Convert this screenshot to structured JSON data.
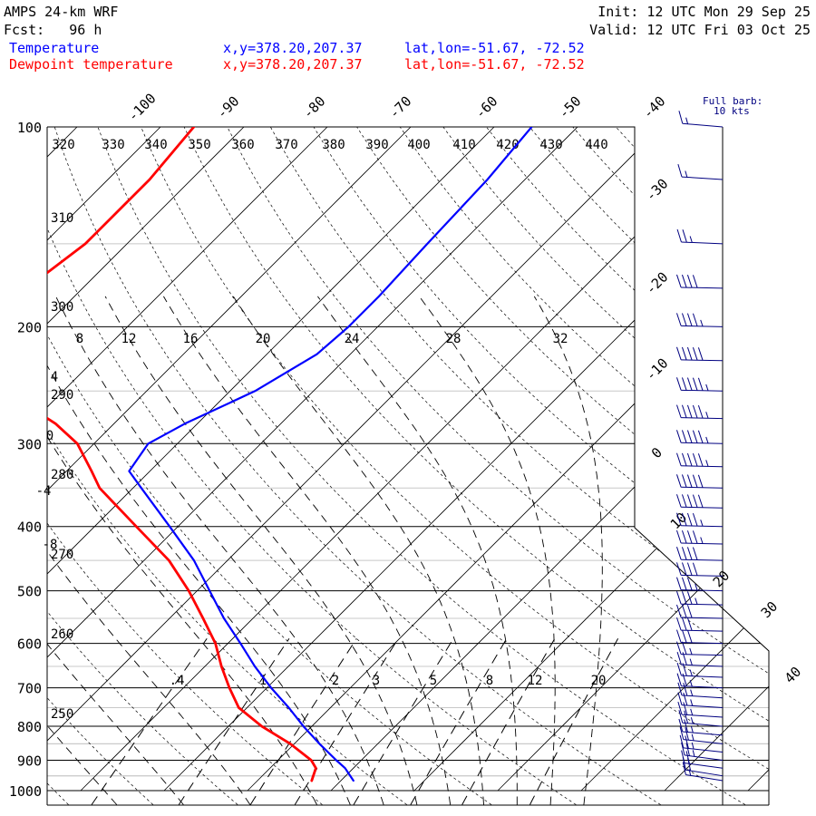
{
  "header": {
    "model": "AMPS 24-km WRF",
    "forecast": "Fcst:   96 h",
    "init": "Init: 12 UTC Mon 29 Sep 25",
    "valid": "Valid: 12 UTC Fri 03 Oct 25"
  },
  "legend": [
    {
      "name": "Temperature",
      "color": "#0000ff",
      "xy": "x,y=378.20,207.37",
      "latlon": "lat,lon=-51.67, -72.52"
    },
    {
      "name": "Dewpoint temperature",
      "color": "#ff0000",
      "xy": "x,y=378.20,207.37",
      "latlon": "lat,lon=-51.67, -72.52"
    }
  ],
  "barb_legend": {
    "line1": "Full barb:",
    "line2": "10 kts"
  },
  "chart_data": {
    "type": "line",
    "diagram": "skew-T log-P",
    "y_axis": {
      "scale": "log",
      "ylim": [
        1000,
        100
      ],
      "ticks": [
        1000,
        900,
        800,
        700,
        600,
        500,
        400,
        300,
        200,
        100
      ]
    },
    "isotherm_labels": [
      -100,
      -90,
      -80,
      -70,
      -60,
      -50,
      -40,
      -30,
      -20,
      -10,
      0,
      10,
      20,
      30,
      40
    ],
    "theta_labels_top": [
      320,
      330,
      340,
      350,
      360,
      370,
      380,
      390,
      400,
      410,
      420,
      430,
      440
    ],
    "theta_labels_left": [
      310,
      300,
      290,
      280,
      270,
      260,
      250
    ],
    "theta_e_labels": [
      8,
      12,
      16,
      20,
      24,
      28,
      32,
      4,
      0,
      -4,
      -8
    ],
    "mixing_ratio_labels": [
      ".4",
      "1",
      "2",
      "3",
      "5",
      "8",
      "12",
      "20"
    ],
    "series": [
      {
        "name": "Temperature",
        "color": "#0000ff",
        "p": [
          966,
          925,
          900,
          850,
          800,
          750,
          700,
          650,
          600,
          550,
          500,
          450,
          400,
          350,
          330,
          300,
          280,
          250,
          220,
          200,
          180,
          150,
          120,
          100
        ],
        "t": [
          1.5,
          -1.0,
          -3.0,
          -7.0,
          -11.0,
          -15.0,
          -19.5,
          -24.0,
          -28.5,
          -33.5,
          -38.5,
          -44.0,
          -51.0,
          -59.0,
          -62.5,
          -63.5,
          -61.5,
          -57.0,
          -54.0,
          -53.5,
          -53.5,
          -54.0,
          -54.5,
          -55.5
        ]
      },
      {
        "name": "Dewpoint temperature",
        "color": "#ff0000",
        "p": [
          966,
          925,
          900,
          850,
          800,
          750,
          700,
          650,
          600,
          550,
          500,
          450,
          400,
          350,
          330,
          300,
          280,
          250,
          240,
          220,
          200,
          180,
          150,
          120,
          100
        ],
        "t": [
          -3.5,
          -4.5,
          -6.0,
          -10.5,
          -16.0,
          -21.0,
          -24.5,
          -28.0,
          -31.5,
          -36.0,
          -41.0,
          -47.0,
          -55.0,
          -64.0,
          -67.0,
          -72.0,
          -77.0,
          -87.0,
          -92.0,
          -96.0,
          -98.0,
          -97.0,
          -95.0,
          -95.0,
          -96.0
        ]
      }
    ],
    "wind_barbs_kts": [
      {
        "p": 100,
        "speed": 15,
        "dir": 250
      },
      {
        "p": 120,
        "speed": 15,
        "dir": 255
      },
      {
        "p": 150,
        "speed": 25,
        "dir": 260
      },
      {
        "p": 175,
        "speed": 40,
        "dir": 265
      },
      {
        "p": 200,
        "speed": 45,
        "dir": 265
      },
      {
        "p": 225,
        "speed": 50,
        "dir": 265
      },
      {
        "p": 250,
        "speed": 55,
        "dir": 265
      },
      {
        "p": 275,
        "speed": 55,
        "dir": 265
      },
      {
        "p": 300,
        "speed": 55,
        "dir": 265
      },
      {
        "p": 325,
        "speed": 55,
        "dir": 265
      },
      {
        "p": 350,
        "speed": 50,
        "dir": 265
      },
      {
        "p": 375,
        "speed": 50,
        "dir": 265
      },
      {
        "p": 400,
        "speed": 45,
        "dir": 265
      },
      {
        "p": 425,
        "speed": 45,
        "dir": 265
      },
      {
        "p": 450,
        "speed": 40,
        "dir": 265
      },
      {
        "p": 475,
        "speed": 40,
        "dir": 265
      },
      {
        "p": 500,
        "speed": 35,
        "dir": 265
      },
      {
        "p": 525,
        "speed": 35,
        "dir": 265
      },
      {
        "p": 550,
        "speed": 30,
        "dir": 265
      },
      {
        "p": 575,
        "speed": 30,
        "dir": 265
      },
      {
        "p": 600,
        "speed": 30,
        "dir": 265
      },
      {
        "p": 625,
        "speed": 25,
        "dir": 265
      },
      {
        "p": 650,
        "speed": 25,
        "dir": 260
      },
      {
        "p": 675,
        "speed": 25,
        "dir": 260
      },
      {
        "p": 700,
        "speed": 25,
        "dir": 260
      },
      {
        "p": 725,
        "speed": 25,
        "dir": 255
      },
      {
        "p": 750,
        "speed": 25,
        "dir": 255
      },
      {
        "p": 775,
        "speed": 25,
        "dir": 255
      },
      {
        "p": 800,
        "speed": 25,
        "dir": 250
      },
      {
        "p": 825,
        "speed": 25,
        "dir": 250
      },
      {
        "p": 850,
        "speed": 25,
        "dir": 245
      },
      {
        "p": 875,
        "speed": 25,
        "dir": 245
      },
      {
        "p": 900,
        "speed": 25,
        "dir": 240
      },
      {
        "p": 925,
        "speed": 20,
        "dir": 240
      },
      {
        "p": 950,
        "speed": 20,
        "dir": 235
      },
      {
        "p": 966,
        "speed": 15,
        "dir": 235
      }
    ]
  }
}
